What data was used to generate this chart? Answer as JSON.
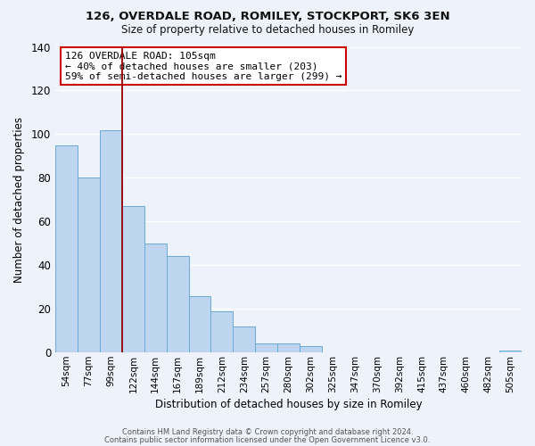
{
  "title1": "126, OVERDALE ROAD, ROMILEY, STOCKPORT, SK6 3EN",
  "title2": "Size of property relative to detached houses in Romiley",
  "xlabel": "Distribution of detached houses by size in Romiley",
  "ylabel": "Number of detached properties",
  "bar_labels": [
    "54sqm",
    "77sqm",
    "99sqm",
    "122sqm",
    "144sqm",
    "167sqm",
    "189sqm",
    "212sqm",
    "234sqm",
    "257sqm",
    "280sqm",
    "302sqm",
    "325sqm",
    "347sqm",
    "370sqm",
    "392sqm",
    "415sqm",
    "437sqm",
    "460sqm",
    "482sqm",
    "505sqm"
  ],
  "bar_values": [
    95,
    80,
    102,
    67,
    50,
    44,
    26,
    19,
    12,
    4,
    4,
    3,
    0,
    0,
    0,
    0,
    0,
    0,
    0,
    0,
    1
  ],
  "bar_color": "#bdd5ee",
  "bar_edge_color": "#6aaad4",
  "background_color": "#eef2fb",
  "grid_color": "#ffffff",
  "ylim": [
    0,
    140
  ],
  "yticks": [
    0,
    20,
    40,
    60,
    80,
    100,
    120,
    140
  ],
  "vline_x": 2.5,
  "vline_color": "#990000",
  "annotation_title": "126 OVERDALE ROAD: 105sqm",
  "annotation_line1": "← 40% of detached houses are smaller (203)",
  "annotation_line2": "59% of semi-detached houses are larger (299) →",
  "footer1": "Contains HM Land Registry data © Crown copyright and database right 2024.",
  "footer2": "Contains public sector information licensed under the Open Government Licence v3.0."
}
